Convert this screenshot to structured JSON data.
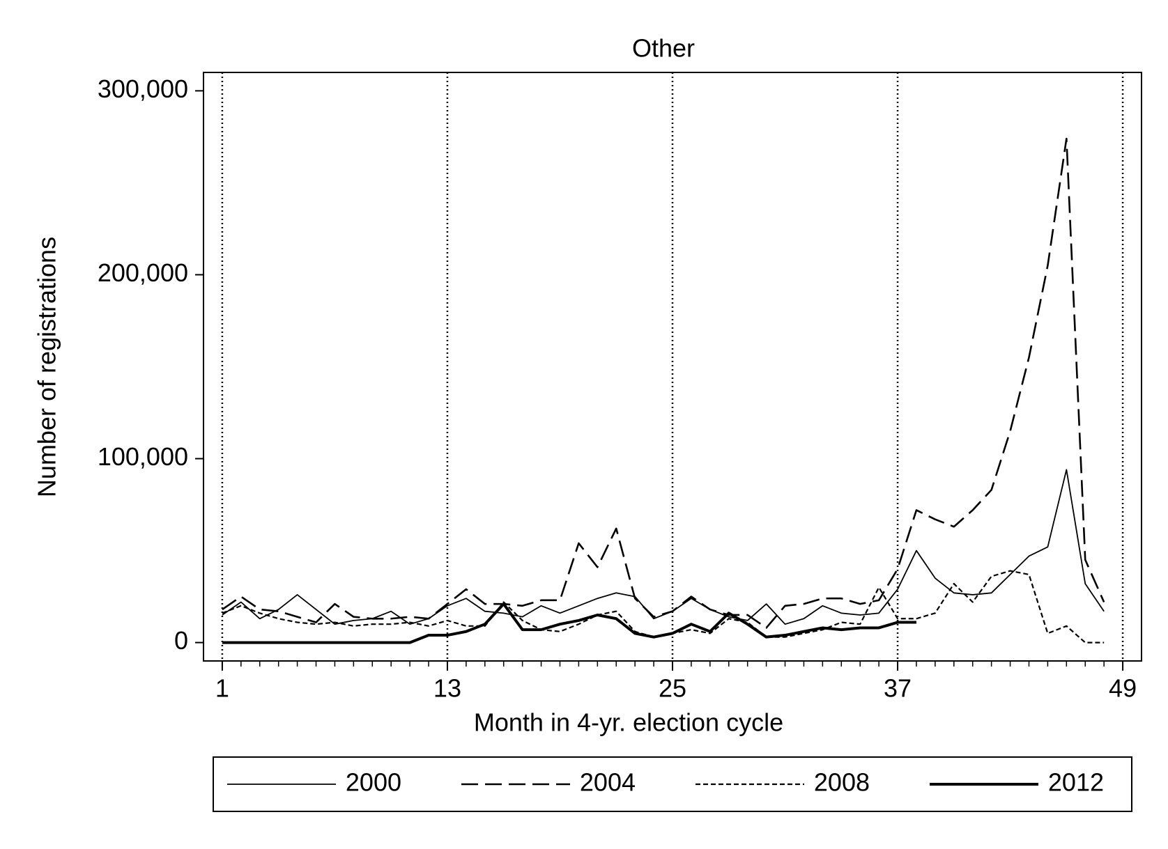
{
  "chart_data": {
    "type": "line",
    "title": "Other",
    "xlabel": "Month in 4-yr. election cycle",
    "ylabel": "Number of registrations",
    "x": [
      1,
      2,
      3,
      4,
      5,
      6,
      7,
      8,
      9,
      10,
      11,
      12,
      13,
      14,
      15,
      16,
      17,
      18,
      19,
      20,
      21,
      22,
      23,
      24,
      25,
      26,
      27,
      28,
      29,
      30,
      31,
      32,
      33,
      34,
      35,
      36,
      37,
      38,
      39,
      40,
      41,
      42,
      43,
      44,
      45,
      46,
      47,
      48
    ],
    "series": [
      {
        "name": "2000",
        "color": "#000000",
        "style": "solid",
        "values": [
          15000,
          22000,
          13000,
          18000,
          26000,
          18000,
          10000,
          12000,
          13000,
          17000,
          10000,
          13000,
          20000,
          24000,
          17000,
          16000,
          14000,
          20000,
          16000,
          20000,
          24000,
          27000,
          25000,
          13000,
          17000,
          24000,
          18000,
          14000,
          12000,
          21000,
          10000,
          13000,
          20000,
          16000,
          15000,
          16000,
          29000,
          50000,
          35000,
          27000,
          26000,
          27000,
          37000,
          47000,
          52000,
          94000,
          32000,
          17000
        ]
      },
      {
        "name": "2004",
        "color": "#000000",
        "style": "dashed",
        "values": [
          18000,
          25000,
          18000,
          17000,
          14000,
          11000,
          21000,
          14000,
          13000,
          13000,
          14000,
          13000,
          21000,
          29000,
          21000,
          21000,
          20000,
          23000,
          23000,
          54000,
          41000,
          62000,
          24000,
          14000,
          17000,
          25000,
          18000,
          15000,
          15000,
          8000,
          20000,
          21000,
          24000,
          24000,
          21000,
          23000,
          40000,
          72000,
          67000,
          63000,
          72000,
          83000,
          115000,
          155000,
          205000,
          274000,
          45000,
          22000
        ]
      },
      {
        "name": "2008",
        "color": "#000000",
        "style": "short-dashed",
        "values": [
          16000,
          20000,
          16000,
          13000,
          11000,
          10000,
          11000,
          9000,
          10000,
          10000,
          11000,
          9000,
          12000,
          9000,
          9000,
          22000,
          12000,
          7000,
          6000,
          10000,
          15000,
          17000,
          6000,
          3000,
          5000,
          7000,
          5000,
          13000,
          11000,
          3000,
          3000,
          5000,
          7000,
          11000,
          10000,
          30000,
          13000,
          13000,
          16000,
          32000,
          22000,
          36000,
          39000,
          37000,
          5000,
          9000,
          0,
          0
        ]
      },
      {
        "name": "2012",
        "color": "#000000",
        "style": "thick",
        "values": [
          0,
          0,
          0,
          0,
          0,
          0,
          0,
          0,
          0,
          0,
          0,
          4000,
          4000,
          6000,
          10000,
          21000,
          7000,
          7000,
          10000,
          12000,
          15000,
          13000,
          5000,
          3000,
          5000,
          10000,
          6000,
          16000,
          10000,
          3000,
          4000,
          6000,
          8000,
          7000,
          8000,
          8000,
          11000,
          11000,
          null,
          null,
          null,
          null,
          null,
          null,
          null,
          null,
          null,
          null
        ]
      }
    ],
    "xlim": [
      0,
      50
    ],
    "xticks": [
      1,
      13,
      25,
      37,
      49
    ],
    "ylim": [
      -10000,
      310000
    ],
    "yticks": [
      {
        "value": 0,
        "label": "0"
      },
      {
        "value": 100000,
        "label": "100,000"
      },
      {
        "value": 200000,
        "label": "200,000"
      },
      {
        "value": 300000,
        "label": "300,000"
      }
    ],
    "xgrid": true,
    "legend": "bottom"
  }
}
